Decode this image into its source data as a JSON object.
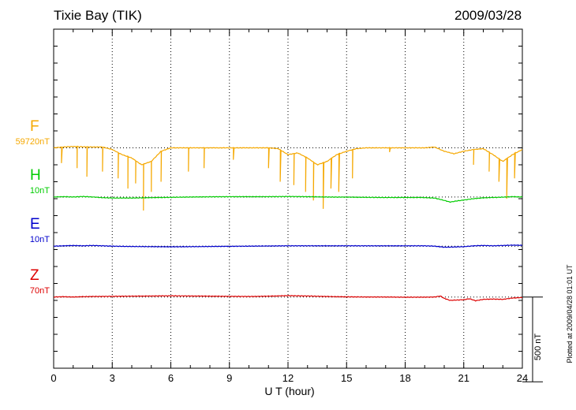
{
  "header": {
    "station": "Tixie Bay (TIK)",
    "date": "2009/03/28"
  },
  "footer": {
    "plotted_at": "Plotted at 2009/04/28 01:01 UT",
    "scale_bar": "500 nT"
  },
  "chart_data": {
    "type": "line",
    "xlabel": "U T (hour)",
    "xlim": [
      0,
      24
    ],
    "xticks": [
      0,
      3,
      6,
      9,
      12,
      15,
      18,
      21,
      24
    ],
    "ylim_nT": [
      -1300,
      700
    ],
    "scale_bar_nT": 500,
    "grid": "dotted vertical lines at 3-hour intervals; dotted baseline for each component",
    "series": [
      {
        "name": "F",
        "baseline_label": "59720nT",
        "baseline_offset_nT": 0,
        "color": "#f5a800",
        "data": [
          [
            0,
            0
          ],
          [
            0.5,
            5
          ],
          [
            1,
            8
          ],
          [
            1.5,
            6
          ],
          [
            2,
            5
          ],
          [
            2.5,
            5
          ],
          [
            3,
            -10
          ],
          [
            3.5,
            -40
          ],
          [
            4,
            -60
          ],
          [
            4.5,
            -100
          ],
          [
            5,
            -80
          ],
          [
            5.5,
            -20
          ],
          [
            6,
            0
          ],
          [
            6.5,
            0
          ],
          [
            7,
            0
          ],
          [
            8,
            0
          ],
          [
            9,
            0
          ],
          [
            10,
            0
          ],
          [
            11,
            0
          ],
          [
            11.5,
            -5
          ],
          [
            12,
            -40
          ],
          [
            12.5,
            -30
          ],
          [
            13,
            -60
          ],
          [
            13.5,
            -100
          ],
          [
            14,
            -80
          ],
          [
            14.5,
            -40
          ],
          [
            15,
            -20
          ],
          [
            15.5,
            -5
          ],
          [
            16,
            0
          ],
          [
            17,
            0
          ],
          [
            18,
            0
          ],
          [
            19,
            0
          ],
          [
            19.5,
            5
          ],
          [
            20,
            -20
          ],
          [
            20.5,
            -35
          ],
          [
            21,
            -20
          ],
          [
            21.5,
            -10
          ],
          [
            22,
            -5
          ],
          [
            22.5,
            -40
          ],
          [
            23,
            -80
          ],
          [
            23.5,
            -40
          ],
          [
            24,
            -10
          ]
        ],
        "dips": [
          [
            0.4,
            -90
          ],
          [
            1.2,
            -120
          ],
          [
            1.7,
            -170
          ],
          [
            2.5,
            -140
          ],
          [
            3.3,
            -180
          ],
          [
            3.8,
            -240
          ],
          [
            4.2,
            -210
          ],
          [
            4.6,
            -370
          ],
          [
            5.0,
            -260
          ],
          [
            5.5,
            -200
          ],
          [
            6.9,
            -140
          ],
          [
            7.7,
            -120
          ],
          [
            9.2,
            -70
          ],
          [
            11.0,
            -120
          ],
          [
            11.6,
            -200
          ],
          [
            12.3,
            -220
          ],
          [
            12.9,
            -260
          ],
          [
            13.3,
            -310
          ],
          [
            13.8,
            -360
          ],
          [
            14.2,
            -240
          ],
          [
            14.6,
            -260
          ],
          [
            15.3,
            -180
          ],
          [
            17.2,
            -25
          ],
          [
            21.5,
            -100
          ],
          [
            22.3,
            -140
          ],
          [
            22.8,
            -200
          ],
          [
            23.2,
            -300
          ],
          [
            23.6,
            -180
          ]
        ]
      },
      {
        "name": "H",
        "baseline_label": "10nT",
        "baseline_offset_nT": -290,
        "color": "#00cc00",
        "data": [
          [
            0,
            0
          ],
          [
            0.5,
            2
          ],
          [
            1,
            0
          ],
          [
            1.5,
            3
          ],
          [
            2,
            0
          ],
          [
            2.5,
            -4
          ],
          [
            3,
            -6
          ],
          [
            4,
            -6
          ],
          [
            5,
            -4
          ],
          [
            6,
            -2
          ],
          [
            7,
            0
          ],
          [
            8,
            1
          ],
          [
            9,
            2
          ],
          [
            10,
            2
          ],
          [
            11,
            2
          ],
          [
            12,
            3
          ],
          [
            13,
            2
          ],
          [
            14,
            0
          ],
          [
            15,
            -1
          ],
          [
            16,
            -2
          ],
          [
            17,
            -3
          ],
          [
            18,
            -3
          ],
          [
            18.8,
            -3
          ],
          [
            19.5,
            -6
          ],
          [
            20,
            -20
          ],
          [
            20.3,
            -30
          ],
          [
            20.6,
            -24
          ],
          [
            21,
            -18
          ],
          [
            21.5,
            -10
          ],
          [
            22,
            -5
          ],
          [
            22.5,
            -3
          ],
          [
            23,
            -1
          ],
          [
            23.5,
            2
          ],
          [
            24,
            0
          ]
        ]
      },
      {
        "name": "E",
        "baseline_label": "10nT",
        "baseline_offset_nT": -580,
        "color": "#0000cc",
        "data": [
          [
            0,
            0
          ],
          [
            0.5,
            2
          ],
          [
            1,
            4
          ],
          [
            1.5,
            2
          ],
          [
            2,
            4
          ],
          [
            2.5,
            2
          ],
          [
            3,
            0
          ],
          [
            4,
            -2
          ],
          [
            5,
            -3
          ],
          [
            6,
            -4
          ],
          [
            7,
            -3
          ],
          [
            8,
            -2
          ],
          [
            9,
            -1
          ],
          [
            10,
            0
          ],
          [
            11,
            1
          ],
          [
            12,
            2
          ],
          [
            13,
            2
          ],
          [
            14,
            2
          ],
          [
            15,
            2
          ],
          [
            16,
            2
          ],
          [
            17,
            2
          ],
          [
            18,
            2
          ],
          [
            19,
            2
          ],
          [
            19.5,
            0
          ],
          [
            20,
            -6
          ],
          [
            20.5,
            -5
          ],
          [
            21,
            -3
          ],
          [
            21.5,
            2
          ],
          [
            22,
            4
          ],
          [
            22.5,
            2
          ],
          [
            23,
            4
          ],
          [
            23.5,
            6
          ],
          [
            24,
            5
          ]
        ]
      },
      {
        "name": "Z",
        "baseline_label": "70nT",
        "baseline_offset_nT": -880,
        "color": "#dd0000",
        "data": [
          [
            0,
            0
          ],
          [
            0.5,
            2
          ],
          [
            1,
            0
          ],
          [
            1.5,
            2
          ],
          [
            2,
            3
          ],
          [
            3,
            4
          ],
          [
            4,
            5
          ],
          [
            5,
            6
          ],
          [
            6,
            7
          ],
          [
            7,
            6
          ],
          [
            8,
            5
          ],
          [
            9,
            4
          ],
          [
            10,
            3
          ],
          [
            11,
            5
          ],
          [
            12,
            8
          ],
          [
            13,
            6
          ],
          [
            14,
            3
          ],
          [
            15,
            1
          ],
          [
            16,
            0
          ],
          [
            17,
            0
          ],
          [
            18,
            -1
          ],
          [
            19,
            -1
          ],
          [
            19.5,
            0
          ],
          [
            19.8,
            6
          ],
          [
            20,
            -8
          ],
          [
            20.3,
            -20
          ],
          [
            20.6,
            -18
          ],
          [
            21,
            -16
          ],
          [
            21.3,
            -10
          ],
          [
            21.6,
            -22
          ],
          [
            22,
            -14
          ],
          [
            22.5,
            -12
          ],
          [
            23,
            -14
          ],
          [
            23.5,
            -6
          ],
          [
            24,
            -3
          ]
        ]
      }
    ]
  }
}
